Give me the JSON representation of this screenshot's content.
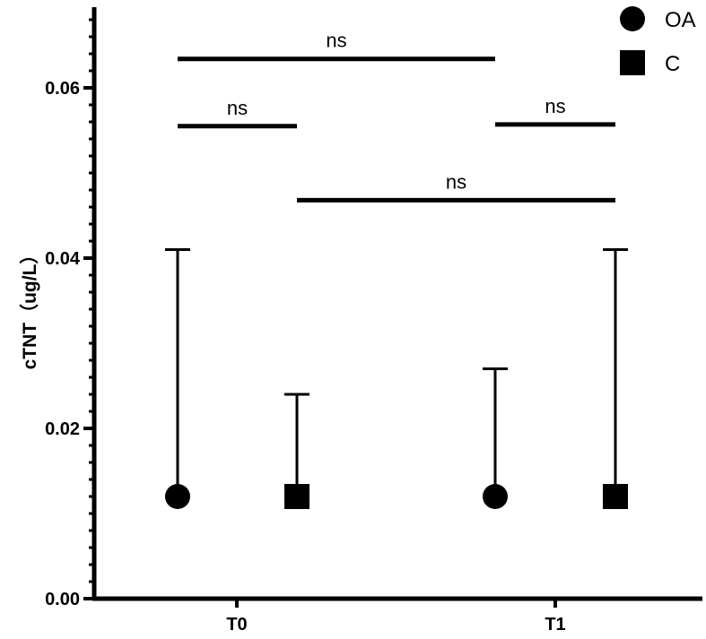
{
  "chart_data": {
    "type": "scatter",
    "ylabel": "cTNT（ug/L）",
    "xlabel": "",
    "ylim": [
      0,
      0.07
    ],
    "y_ticks": [
      "0.00",
      "0.02",
      "0.04",
      "0.06"
    ],
    "y_minor_step": 0.002,
    "categories": [
      "T0",
      "T1"
    ],
    "legend_position": "top-right",
    "grid": false,
    "series": [
      {
        "name": "OA",
        "marker": "circle",
        "points": [
          {
            "category": "T0",
            "y": 0.012,
            "error_upper": 0.041
          },
          {
            "category": "T1",
            "y": 0.012,
            "error_upper": 0.027
          }
        ]
      },
      {
        "name": "C",
        "marker": "square",
        "points": [
          {
            "category": "T0",
            "y": 0.012,
            "error_upper": 0.024
          },
          {
            "category": "T1",
            "y": 0.012,
            "error_upper": 0.041
          }
        ]
      }
    ],
    "significance": [
      {
        "from": "T0-OA",
        "to": "T1-OA",
        "y": 0.0634,
        "label": "ns"
      },
      {
        "from": "T0-OA",
        "to": "T0-C",
        "y": 0.0555,
        "label": "ns"
      },
      {
        "from": "T1-OA",
        "to": "T1-C",
        "y": 0.0557,
        "label": "ns"
      },
      {
        "from": "T0-C",
        "to": "T1-C",
        "y": 0.0468,
        "label": "ns"
      }
    ]
  },
  "colors": {
    "ink": "#000000"
  }
}
